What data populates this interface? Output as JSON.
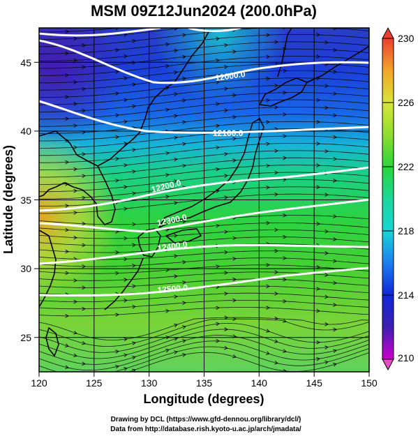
{
  "title": "MSM 09Z12Jun2024 (200.0hPa)",
  "xaxis": {
    "label": "Longitude (degrees)",
    "range": [
      120,
      150
    ],
    "ticks": [
      "120",
      "125",
      "130",
      "135",
      "140",
      "145",
      "150"
    ]
  },
  "yaxis": {
    "label": "Latitude  (degrees)",
    "range": [
      22.5,
      47.5
    ],
    "ticks": [
      "25",
      "30",
      "35",
      "40",
      "45"
    ]
  },
  "colorbar": {
    "range": [
      210,
      230
    ],
    "ticks": [
      "210",
      "214",
      "218",
      "222",
      "226",
      "230"
    ],
    "colors": [
      "#cc00cc",
      "#3f1fb0",
      "#0f27d7",
      "#1a7ef0",
      "#18d6d6",
      "#1bd89a",
      "#2ad53a",
      "#8fde2e",
      "#d8e53a",
      "#f2a52a",
      "#ea4030"
    ]
  },
  "contours": [
    {
      "label": "12000.0"
    },
    {
      "label": "12100.0"
    },
    {
      "label": "12200.0"
    },
    {
      "label": "12300.0"
    },
    {
      "label": "12400.0"
    },
    {
      "label": "12500.0"
    }
  ],
  "credits": {
    "line1": "Drawing by DCL (https://www.gfd-dennou.org/library/dcl/)",
    "line2": "Data from http://database.rish.kyoto-u.ac.jp/arch/jmadata/"
  }
}
